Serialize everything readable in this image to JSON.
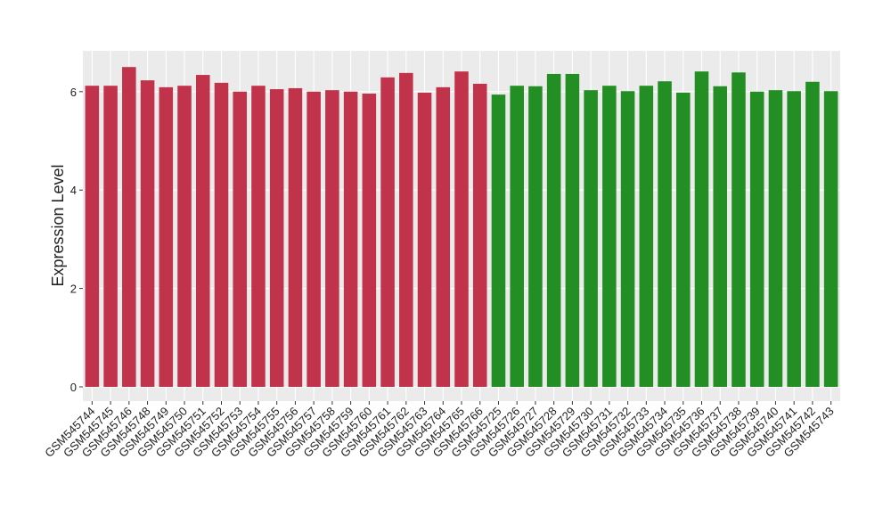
{
  "chart_data": {
    "type": "bar",
    "y_label": "Expression Level",
    "categories": [
      "GSM545744",
      "GSM545745",
      "GSM545746",
      "GSM545748",
      "GSM545749",
      "GSM545750",
      "GSM545751",
      "GSM545752",
      "GSM545753",
      "GSM545754",
      "GSM545755",
      "GSM545756",
      "GSM545757",
      "GSM545758",
      "GSM545759",
      "GSM545760",
      "GSM545761",
      "GSM545762",
      "GSM545763",
      "GSM545764",
      "GSM545765",
      "GSM545766",
      "GSM545725",
      "GSM545726",
      "GSM545727",
      "GSM545728",
      "GSM545729",
      "GSM545730",
      "GSM545731",
      "GSM545732",
      "GSM545733",
      "GSM545734",
      "GSM545735",
      "GSM545736",
      "GSM545737",
      "GSM545738",
      "GSM545739",
      "GSM545740",
      "GSM545741",
      "GSM545742",
      "GSM545743"
    ],
    "values": [
      6.12,
      6.12,
      6.5,
      6.23,
      6.09,
      6.12,
      6.34,
      6.18,
      6.0,
      6.12,
      6.05,
      6.07,
      6.0,
      6.03,
      6.0,
      5.96,
      6.29,
      6.38,
      5.98,
      6.09,
      6.41,
      6.16,
      5.94,
      6.12,
      6.11,
      6.36,
      6.36,
      6.03,
      6.12,
      6.01,
      6.12,
      6.21,
      5.98,
      6.41,
      6.11,
      6.39,
      6.0,
      6.03,
      6.01,
      6.2,
      6.01
    ],
    "colors": [
      "#c0334a",
      "#c0334a",
      "#c0334a",
      "#c0334a",
      "#c0334a",
      "#c0334a",
      "#c0334a",
      "#c0334a",
      "#c0334a",
      "#c0334a",
      "#c0334a",
      "#c0334a",
      "#c0334a",
      "#c0334a",
      "#c0334a",
      "#c0334a",
      "#c0334a",
      "#c0334a",
      "#c0334a",
      "#c0334a",
      "#c0334a",
      "#c0334a",
      "#238e23",
      "#238e23",
      "#238e23",
      "#238e23",
      "#238e23",
      "#238e23",
      "#238e23",
      "#238e23",
      "#238e23",
      "#238e23",
      "#238e23",
      "#238e23",
      "#238e23",
      "#238e23",
      "#238e23",
      "#238e23",
      "#238e23",
      "#238e23",
      "#238e23"
    ],
    "ylim": [
      -0.29,
      6.83
    ],
    "yticks": [
      0,
      2,
      4,
      6
    ],
    "grid": true
  }
}
